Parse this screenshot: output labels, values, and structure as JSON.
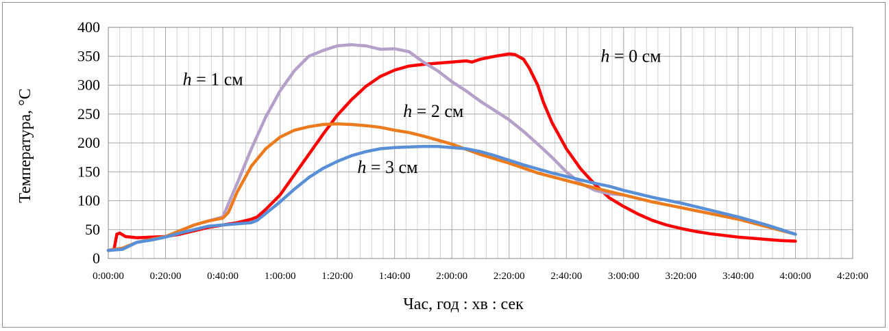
{
  "chart_data": {
    "type": "line",
    "xlabel": "Час,  год : хв : сек",
    "ylabel": "Температура, °С",
    "ylim": [
      0,
      400
    ],
    "y_ticks": [
      0,
      50,
      100,
      150,
      200,
      250,
      300,
      350,
      400
    ],
    "xlim_minutes": [
      0,
      260
    ],
    "x_ticks": [
      "0:00:00",
      "0:20:00",
      "0:40:00",
      "1:00:00",
      "1:20:00",
      "1:40:00",
      "2:00:00",
      "2:20:00",
      "2:40:00",
      "3:00:00",
      "3:20:00",
      "3:40:00",
      "4:00:00",
      "4:20:00"
    ],
    "grid": true,
    "minor_grid": true,
    "series": [
      {
        "name": "h = 0 см",
        "label_italic": "h",
        "label_rest": " = 0 см",
        "color": "#ff0000",
        "x_minutes": [
          0,
          2,
          3,
          4,
          6,
          10,
          15,
          20,
          25,
          30,
          35,
          40,
          45,
          50,
          52,
          55,
          60,
          65,
          70,
          75,
          80,
          85,
          90,
          95,
          100,
          105,
          110,
          115,
          120,
          125,
          127,
          130,
          135,
          140,
          142,
          145,
          147,
          150,
          152,
          155,
          160,
          165,
          170,
          175,
          180,
          185,
          190,
          195,
          200,
          205,
          210,
          215,
          220,
          225,
          230,
          235,
          240
        ],
        "values": [
          14,
          16,
          42,
          44,
          38,
          36,
          37,
          38,
          42,
          48,
          54,
          58,
          62,
          68,
          72,
          85,
          110,
          145,
          180,
          215,
          248,
          275,
          298,
          315,
          326,
          333,
          336,
          338,
          340,
          342,
          340,
          345,
          350,
          354,
          353,
          345,
          330,
          300,
          270,
          235,
          190,
          155,
          128,
          105,
          90,
          77,
          66,
          58,
          52,
          47,
          43,
          40,
          37,
          35,
          33,
          31,
          30
        ]
      },
      {
        "name": "h = 1 см",
        "label_italic": "h",
        "label_rest": " = 1 см",
        "color": "#b4a0c8",
        "x_minutes": [
          0,
          5,
          10,
          15,
          20,
          25,
          30,
          35,
          40,
          42,
          45,
          50,
          55,
          60,
          65,
          70,
          75,
          80,
          85,
          87,
          90,
          95,
          100,
          105,
          110,
          115,
          120,
          125,
          130,
          135,
          140,
          145,
          150,
          155,
          160,
          165,
          170,
          175,
          180
        ],
        "values": [
          14,
          18,
          28,
          33,
          38,
          48,
          58,
          65,
          72,
          95,
          130,
          190,
          245,
          290,
          325,
          350,
          360,
          368,
          370,
          369,
          368,
          362,
          363,
          358,
          340,
          325,
          306,
          290,
          272,
          256,
          240,
          220,
          198,
          175,
          150,
          130,
          118,
          112,
          110
        ]
      },
      {
        "name": "h = 2 см",
        "label_italic": "h",
        "label_rest": " = 2 см",
        "color": "#ec7b1e",
        "x_minutes": [
          0,
          5,
          10,
          15,
          20,
          25,
          30,
          35,
          40,
          42,
          45,
          50,
          55,
          60,
          65,
          70,
          75,
          80,
          85,
          90,
          95,
          100,
          105,
          110,
          115,
          120,
          130,
          140,
          150,
          160,
          170,
          180,
          190,
          200,
          210,
          220,
          230,
          240
        ],
        "values": [
          14,
          18,
          28,
          33,
          38,
          48,
          58,
          65,
          70,
          80,
          115,
          160,
          190,
          210,
          222,
          228,
          232,
          233,
          232,
          230,
          227,
          222,
          218,
          212,
          205,
          198,
          180,
          165,
          148,
          135,
          122,
          110,
          98,
          88,
          78,
          68,
          55,
          42
        ]
      },
      {
        "name": "h = 3 см",
        "label_italic": "h",
        "label_rest": " = 3 см",
        "color": "#588fd6",
        "x_minutes": [
          0,
          5,
          10,
          15,
          20,
          25,
          30,
          35,
          40,
          45,
          50,
          52,
          55,
          60,
          65,
          70,
          75,
          80,
          85,
          90,
          95,
          100,
          105,
          110,
          115,
          120,
          125,
          130,
          135,
          140,
          145,
          150,
          155,
          160,
          165,
          170,
          175,
          180,
          190,
          200,
          210,
          220,
          230,
          240
        ],
        "values": [
          14,
          16,
          28,
          32,
          37,
          44,
          50,
          56,
          58,
          60,
          62,
          66,
          78,
          98,
          120,
          140,
          156,
          168,
          178,
          185,
          190,
          192,
          193,
          194,
          194,
          192,
          190,
          185,
          178,
          170,
          162,
          155,
          148,
          142,
          136,
          130,
          125,
          118,
          106,
          96,
          84,
          72,
          58,
          42
        ]
      }
    ],
    "annotations": [
      {
        "series": 0,
        "x_minutes": 172,
        "y": 340
      },
      {
        "series": 1,
        "x_minutes": 26,
        "y": 300
      },
      {
        "series": 2,
        "x_minutes": 103,
        "y": 245
      },
      {
        "series": 3,
        "x_minutes": 87,
        "y": 148
      }
    ]
  }
}
